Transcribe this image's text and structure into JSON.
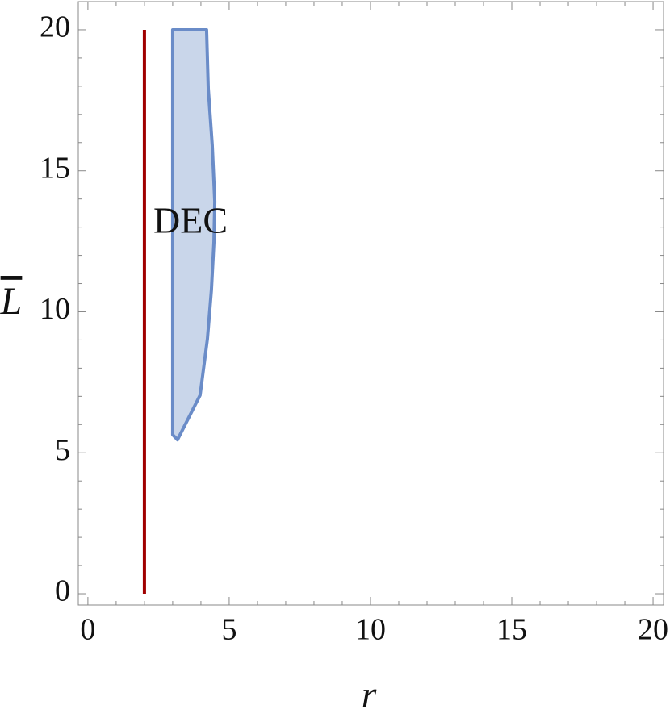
{
  "chart_data": {
    "type": "region",
    "x_label": "r",
    "y_label": "L",
    "xlim": [
      -0.34,
      20.37
    ],
    "ylim": [
      -0.4,
      21.0
    ],
    "xticks": [
      0,
      5,
      10,
      15,
      20
    ],
    "yticks": [
      0,
      5,
      10,
      15,
      20
    ],
    "xminorticks": [
      1,
      2,
      3,
      4,
      6,
      7,
      8,
      9,
      11,
      12,
      13,
      14,
      16,
      17,
      18,
      19
    ],
    "yminorticks": [
      1,
      2,
      3,
      4,
      6,
      7,
      8,
      9,
      11,
      12,
      13,
      14,
      16,
      17,
      18,
      19
    ],
    "lines": [
      {
        "x": [
          2,
          2
        ],
        "y": [
          0,
          20
        ],
        "color": "#a00000"
      }
    ],
    "regions": [
      {
        "label": "DEC",
        "color": "#c9d6ea",
        "edge_color": "#6a8cc8",
        "x": [
          3.0,
          4.2,
          4.26,
          4.4,
          4.49,
          4.46,
          4.37,
          4.23,
          3.97,
          3.17,
          3.0
        ],
        "y": [
          20,
          20,
          17.91,
          15.91,
          13.91,
          12.47,
          10.76,
          9.04,
          7.04,
          5.46,
          5.64
        ]
      }
    ]
  }
}
